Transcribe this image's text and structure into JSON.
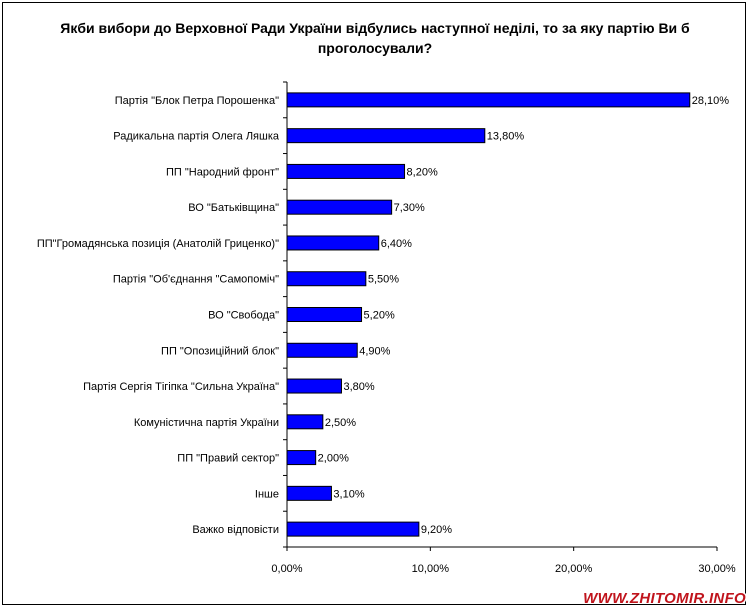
{
  "chart_data": {
    "type": "bar",
    "orientation": "horizontal",
    "title": "Якби вибори до Верховної Ради України відбулись наступної неділі, то за яку партію Ви б проголосували?",
    "categories": [
      "Партія \"Блок Петра Порошенка\"",
      "Радикальна партія Олега Ляшка",
      "ПП \"Народний фронт\"",
      "ВО \"Батьківщина\"",
      "ПП\"Громадянська позиція (Анатолій Гриценко)\"",
      "Партія \"Об'єднання \"Самопоміч\"",
      "ВО \"Свобода\"",
      "ПП \"Опозиційний блок\"",
      "Партія Сергія Тігіпка \"Сильна Україна\"",
      "Комуністична партія України",
      "ПП \"Правий сектор\"",
      "Інше",
      "Важко відповісти"
    ],
    "values": [
      28.1,
      13.8,
      8.2,
      7.3,
      6.4,
      5.5,
      5.2,
      4.9,
      3.8,
      2.5,
      2.0,
      3.1,
      9.2
    ],
    "value_labels": [
      "28,10%",
      "13,80%",
      "8,20%",
      "7,30%",
      "6,40%",
      "5,50%",
      "5,20%",
      "4,90%",
      "3,80%",
      "2,50%",
      "2,00%",
      "3,10%",
      "9,20%"
    ],
    "xlim": [
      0,
      30
    ],
    "x_ticks": [
      0,
      10,
      20,
      30
    ],
    "x_tick_labels": [
      "0,00%",
      "10,00%",
      "20,00%",
      "30,00%"
    ],
    "grid": false,
    "legend": "none",
    "colors": {
      "bar_fill": "#0000ff",
      "bar_stroke": "#000000",
      "axis": "#000000"
    }
  },
  "watermark": "WWW.ZHITOMIR.INFO"
}
